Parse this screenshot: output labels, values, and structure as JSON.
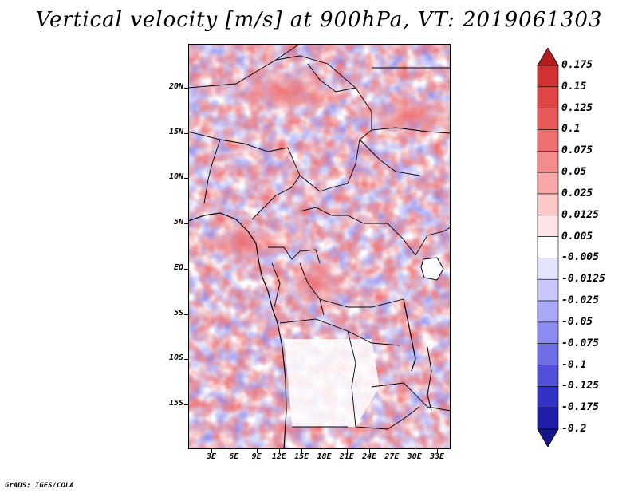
{
  "title": "Vertical velocity [m/s] at 900hPa, VT: 2019061303",
  "map": {
    "variable": "Vertical velocity",
    "units": "m/s",
    "level": "900hPa",
    "valid_time": "2019061303",
    "lon_range_deg_e": [
      0,
      35
    ],
    "lat_range_deg": [
      -20,
      25
    ]
  },
  "y_ticks": [
    "20N",
    "15N",
    "10N",
    "5N",
    "EQ",
    "5S",
    "10S",
    "15S"
  ],
  "x_ticks": [
    "3E",
    "6E",
    "9E",
    "12E",
    "15E",
    "18E",
    "21E",
    "24E",
    "27E",
    "30E",
    "33E"
  ],
  "colorbar": {
    "labels": [
      "0.175",
      "0.15",
      "0.125",
      "0.1",
      "0.075",
      "0.05",
      "0.025",
      "0.0125",
      "0.005",
      "-0.005",
      "-0.0125",
      "-0.025",
      "-0.05",
      "-0.075",
      "-0.1",
      "-0.125",
      "-0.175",
      "-0.2"
    ],
    "colors": [
      "#b41e1e",
      "#d23232",
      "#e04646",
      "#e85a5a",
      "#ee7070",
      "#f48c8c",
      "#f8a8a8",
      "#fcc8c8",
      "#fee4e4",
      "#ffffff",
      "#e4e4fe",
      "#c8c8fc",
      "#a8a8f6",
      "#8c8cf0",
      "#6e6ee6",
      "#5050d8",
      "#3232c4",
      "#1e1ea8",
      "#14148c"
    ]
  },
  "footer": "GrADS: IGES/COLA"
}
